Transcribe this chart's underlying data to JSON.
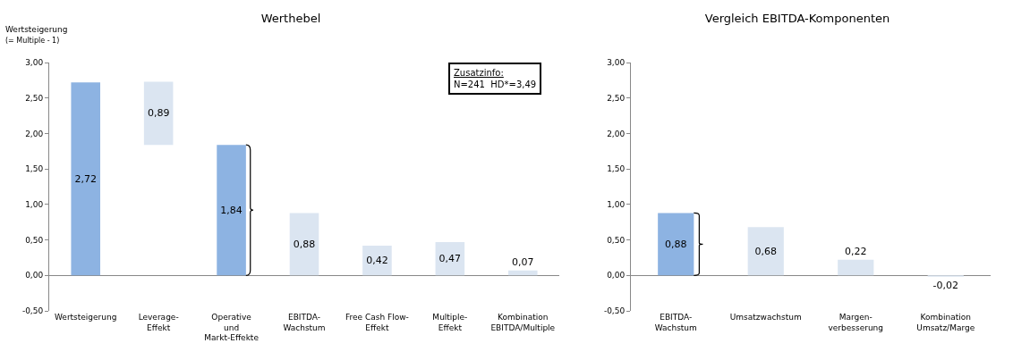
{
  "chart_data": [
    {
      "type": "bar",
      "title": "Werthebel",
      "ylabel": "Wertsteigerung\n(= Multiple - 1)",
      "categories": [
        "Wertsteigerung",
        "Leverage-\nEffekt",
        "Operative\nund\nMarkt-Effekte",
        "EBITDA-\nWachstum",
        "Free Cash Flow-\nEffekt",
        "Multiple-\nEffekt",
        "Kombination\nEBITDA/Multiple"
      ],
      "values": [
        2.72,
        0.89,
        1.84,
        0.88,
        0.42,
        0.47,
        0.07
      ],
      "base": [
        0,
        1.84,
        0,
        0,
        0,
        0,
        0
      ],
      "colors": [
        "#8db3e2",
        "#dbe5f1",
        "#8db3e2",
        "#dbe5f1",
        "#dbe5f1",
        "#dbe5f1",
        "#dbe5f1"
      ],
      "value_labels": [
        "2,72",
        "0,89",
        "1,84",
        "0,88",
        "0,42",
        "0,47",
        "0,07"
      ],
      "ylim": [
        -0.5,
        3
      ],
      "yticks": [
        {
          "value": -0.5,
          "label": "-0,50"
        },
        {
          "value": 0,
          "label": "0,00"
        },
        {
          "value": 0.5,
          "label": "0,50"
        },
        {
          "value": 1,
          "label": "1,00"
        },
        {
          "value": 1.5,
          "label": "1,50"
        },
        {
          "value": 2,
          "label": "2,00"
        },
        {
          "value": 2.5,
          "label": "2,50"
        },
        {
          "value": 3,
          "label": "3,00"
        }
      ],
      "annotations": [
        "Zusatzinfo:\nN=241  HD*=3,49"
      ]
    },
    {
      "type": "bar",
      "title": "Vergleich EBITDA-Komponenten",
      "categories": [
        "EBITDA-\nWachstum",
        "Umsatzwachstum",
        "Margen-\nverbesserung",
        "Kombination\nUmsatz/Marge"
      ],
      "values": [
        0.88,
        0.68,
        0.22,
        -0.02
      ],
      "colors": [
        "#8db3e2",
        "#dbe5f1",
        "#dbe5f1",
        "#dbe5f1"
      ],
      "value_labels": [
        "0,88",
        "0,68",
        "0,22",
        "-0,02"
      ],
      "ylim": [
        -0.5,
        3
      ],
      "yticks": [
        {
          "value": -0.5,
          "label": "-0,50"
        },
        {
          "value": 0,
          "label": "0,00"
        },
        {
          "value": 0.5,
          "label": "0,50"
        },
        {
          "value": 1,
          "label": "1,00"
        },
        {
          "value": 1.5,
          "label": "1,50"
        },
        {
          "value": 2,
          "label": "2,00"
        },
        {
          "value": 2.5,
          "label": "2,50"
        },
        {
          "value": 3,
          "label": "3,00"
        }
      ]
    }
  ]
}
